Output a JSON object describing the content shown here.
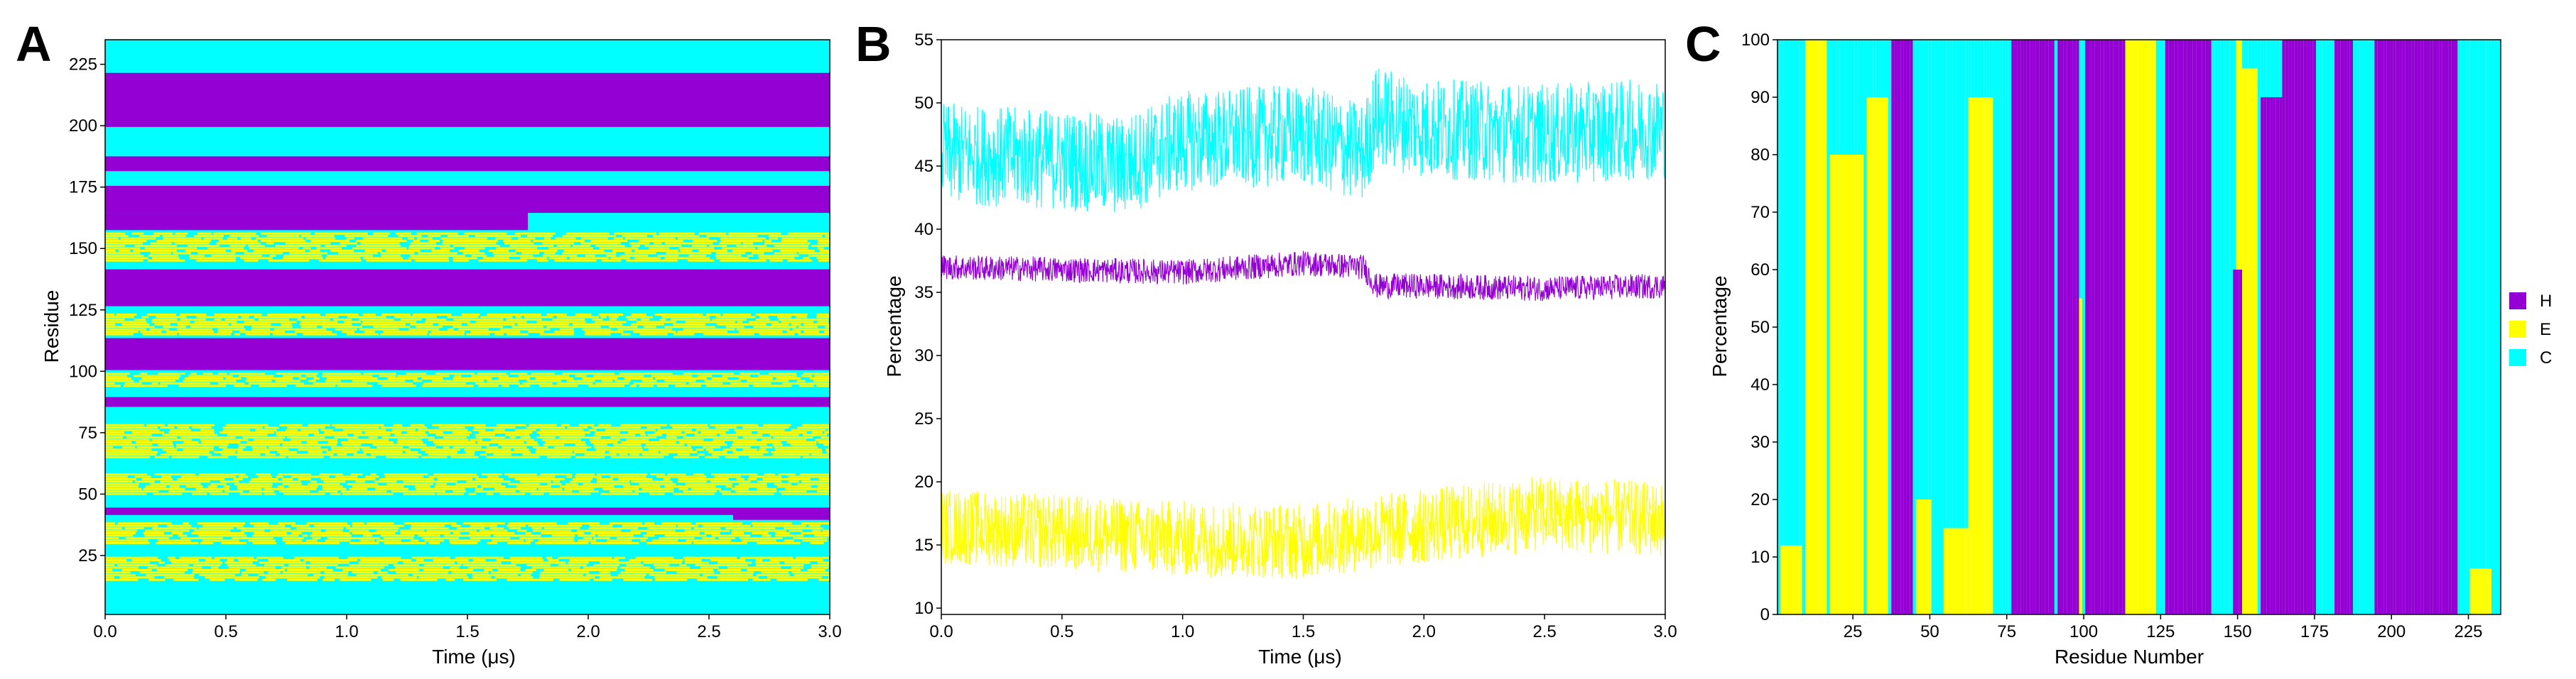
{
  "colors": {
    "H": "#9400D3",
    "E": "#FFFF00",
    "C": "#00FFFF"
  },
  "chart_data": [
    {
      "panel": "A",
      "type": "heatmap",
      "xlabel": "Time (μs)",
      "ylabel": "Residue",
      "xlim": [
        0,
        3.0
      ],
      "ylim": [
        1,
        235
      ],
      "xticks": [
        0.0,
        0.5,
        1.0,
        1.5,
        2.0,
        2.5,
        3.0
      ],
      "xtick_labels": [
        "0.0",
        "0.5",
        "1.0",
        "1.5",
        "2.0",
        "2.5",
        "3.0"
      ],
      "yticks": [
        25,
        50,
        75,
        100,
        125,
        150,
        175,
        200,
        225
      ],
      "ytick_labels": [
        "25",
        "50",
        "75",
        "100",
        "125",
        "150",
        "175",
        "200",
        "225"
      ],
      "states": [
        "H",
        "E",
        "C"
      ],
      "background_state": "C",
      "helix_segments": [
        [
          200,
          221
        ],
        [
          182,
          187
        ],
        [
          165,
          175
        ],
        [
          127,
          141
        ],
        [
          101,
          113
        ],
        [
          86,
          89
        ],
        [
          42,
          44
        ]
      ],
      "partial_helix_segments": [
        {
          "range": [
            158,
            164
          ],
          "t_end": 1.75
        },
        {
          "range": [
            40,
            42
          ],
          "t_start": 2.6
        }
      ],
      "strand_segments": [
        [
          145,
          156
        ],
        [
          115,
          123
        ],
        [
          94,
          99
        ],
        [
          65,
          78
        ],
        [
          50,
          58
        ],
        [
          30,
          38
        ],
        [
          15,
          24
        ]
      ]
    },
    {
      "panel": "B",
      "type": "line",
      "xlabel": "Time (μs)",
      "ylabel": "Percentage",
      "xlim": [
        0,
        3.0
      ],
      "ylim": [
        9.5,
        55
      ],
      "xticks": [
        0.0,
        0.5,
        1.0,
        1.5,
        2.0,
        2.5,
        3.0
      ],
      "xtick_labels": [
        "0.0",
        "0.5",
        "1.0",
        "1.5",
        "2.0",
        "2.5",
        "3.0"
      ],
      "yticks": [
        10,
        15,
        20,
        25,
        30,
        35,
        40,
        45,
        50,
        55
      ],
      "ytick_labels": [
        "10",
        "15",
        "20",
        "25",
        "30",
        "35",
        "40",
        "45",
        "50",
        "55"
      ],
      "series": [
        {
          "state": "C",
          "x": [
            0.0,
            0.5,
            0.75,
            1.0,
            1.5,
            1.75,
            1.8,
            2.0,
            2.5,
            3.0
          ],
          "values": [
            46,
            45.5,
            45,
            47,
            47.5,
            46,
            49,
            48,
            47.5,
            48
          ],
          "noise": 4.0
        },
        {
          "state": "H",
          "x": [
            0.0,
            0.5,
            1.0,
            1.5,
            1.75,
            1.8,
            2.0,
            2.5,
            3.0
          ],
          "values": [
            37,
            36.8,
            36.6,
            37.3,
            37,
            35.5,
            35.5,
            35.3,
            35.5
          ],
          "noise": 1.0
        },
        {
          "state": "E",
          "x": [
            0.0,
            0.5,
            1.0,
            1.5,
            2.0,
            2.5,
            3.0
          ],
          "values": [
            16.5,
            16,
            15.5,
            15.3,
            16.5,
            17.5,
            17
          ],
          "noise": 3.0
        }
      ]
    },
    {
      "panel": "C",
      "type": "bar",
      "stacked": true,
      "xlabel": "Residue Number",
      "ylabel": "Percentage",
      "xlim": [
        1,
        235
      ],
      "ylim": [
        0,
        100
      ],
      "xticks": [
        25,
        50,
        75,
        100,
        125,
        150,
        175,
        200,
        225
      ],
      "xtick_labels": [
        "25",
        "50",
        "75",
        "100",
        "125",
        "150",
        "175",
        "200",
        "225"
      ],
      "yticks": [
        0,
        10,
        20,
        30,
        40,
        50,
        60,
        70,
        80,
        90,
        100
      ],
      "ytick_labels": [
        "0",
        "10",
        "20",
        "30",
        "40",
        "50",
        "60",
        "70",
        "80",
        "90",
        "100"
      ],
      "legend": [
        "H",
        "E",
        "C"
      ],
      "legend_position": "right",
      "helix_percent_segments": [
        {
          "range": [
            38,
            44
          ],
          "value": 100
        },
        {
          "range": [
            77,
            90
          ],
          "value": 100
        },
        {
          "range": [
            92,
            98
          ],
          "value": 100
        },
        {
          "range": [
            101,
            113
          ],
          "value": 100
        },
        {
          "range": [
            127,
            141
          ],
          "value": 100
        },
        {
          "range": [
            149,
            151
          ],
          "value": 60
        },
        {
          "range": [
            158,
            164
          ],
          "value": 90
        },
        {
          "range": [
            165,
            175
          ],
          "value": 100
        },
        {
          "range": [
            182,
            187
          ],
          "value": 100
        },
        {
          "range": [
            195,
            221
          ],
          "value": 100
        }
      ],
      "strand_percent_segments": [
        {
          "range": [
            2,
            8
          ],
          "value": 12
        },
        {
          "range": [
            10,
            16
          ],
          "value": 100
        },
        {
          "range": [
            18,
            28
          ],
          "value": 80
        },
        {
          "range": [
            30,
            36
          ],
          "value": 90
        },
        {
          "range": [
            46,
            50
          ],
          "value": 20
        },
        {
          "range": [
            55,
            62
          ],
          "value": 15
        },
        {
          "range": [
            63,
            70
          ],
          "value": 90
        },
        {
          "range": [
            93,
            99
          ],
          "value": 55
        },
        {
          "range": [
            114,
            123
          ],
          "value": 100
        },
        {
          "range": [
            150,
            156
          ],
          "value": 95
        },
        {
          "range": [
            226,
            232
          ],
          "value": 8
        }
      ]
    }
  ],
  "panels": {
    "A": {
      "letter": "A"
    },
    "B": {
      "letter": "B"
    },
    "C": {
      "letter": "C"
    }
  }
}
